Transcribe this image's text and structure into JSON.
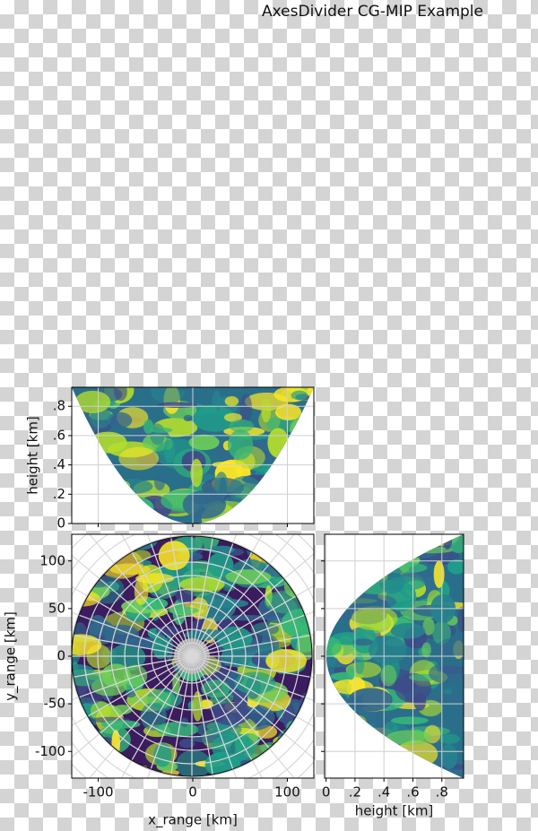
{
  "chart_data": {
    "type": "radar-composite",
    "title": "AxesDivider CG-MIP Example",
    "top": {
      "ylabel": "height [km]",
      "xlim": [
        -128,
        128
      ],
      "ylim": [
        0,
        0.93
      ],
      "yticks": [
        0,
        {
          "value": 0.2,
          "label": ".2"
        },
        {
          "value": 0.4,
          "label": ".4"
        },
        {
          "value": 0.6,
          "label": ".6"
        },
        {
          "value": 0.8,
          "label": ".8"
        }
      ]
    },
    "main": {
      "xlabel": "x_range [km]",
      "ylabel": "y_range [km]",
      "xlim": [
        -128,
        128
      ],
      "ylim": [
        -128,
        128
      ],
      "xticks": [
        -100,
        0,
        100
      ],
      "yticks": [
        -100,
        -50,
        0,
        50,
        100
      ]
    },
    "right": {
      "xlabel": "height [km]",
      "xlim": [
        -0.01,
        0.95
      ],
      "ylim": [
        -128,
        128
      ],
      "xticks": [
        0,
        {
          "value": 0.2,
          "label": ".2"
        },
        {
          "value": 0.4,
          "label": ".4"
        },
        {
          "value": 0.6,
          "label": ".6"
        },
        {
          "value": 0.8,
          "label": ".8"
        }
      ]
    }
  }
}
